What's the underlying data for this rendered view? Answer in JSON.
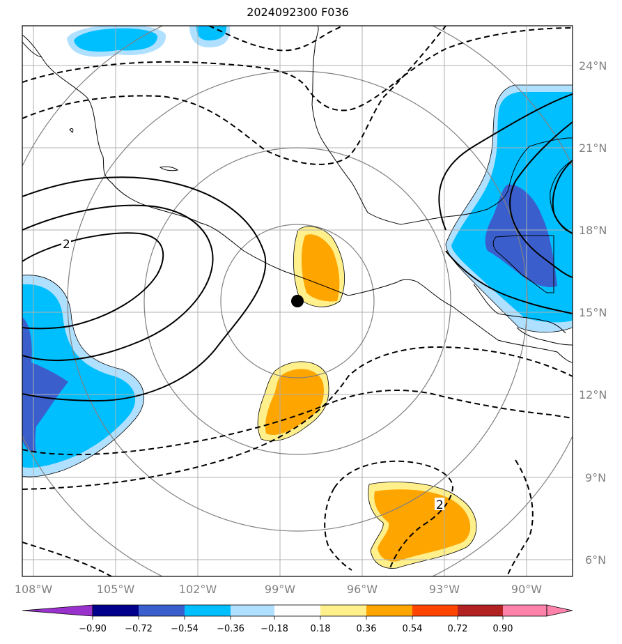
{
  "title": "2024092300 F036",
  "lon_labels": [
    "108°W",
    "105°W",
    "102°W",
    "99°W",
    "96°W",
    "93°W",
    "90°W"
  ],
  "lat_labels": [
    "24°N",
    "21°N",
    "18°N",
    "15°N",
    "12°N",
    "9°N",
    "6°N"
  ],
  "contour_label": "2",
  "colorbar": {
    "ticks": [
      "−0.90",
      "−0.72",
      "−0.54",
      "−0.36",
      "−0.18",
      "0.18",
      "0.36",
      "0.54",
      "0.72",
      "0.90"
    ],
    "colors": [
      "#9932cc",
      "#00008b",
      "#3a5fcd",
      "#00bfff",
      "#b0e0ff",
      "#ffffff",
      "#fff08c",
      "#ffa500",
      "#ff4500",
      "#b22222",
      "#ff82ab"
    ]
  },
  "center_marker": {
    "lon": "98.4°W",
    "lat": "15.4°N"
  },
  "fill_colors": {
    "light_blue": "#b0e0ff",
    "blue": "#00bfff",
    "dark_blue": "#3a5fcd",
    "yellow": "#fff08c",
    "orange": "#ffa500"
  }
}
